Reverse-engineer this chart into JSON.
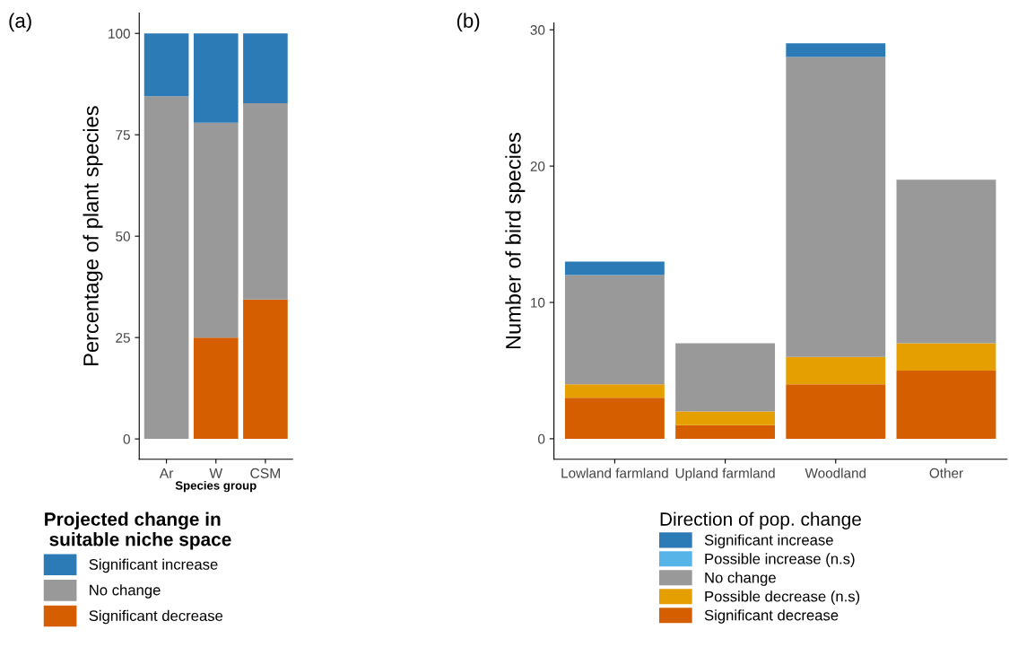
{
  "chart_data": [
    {
      "type": "bar",
      "title": "(a)",
      "xlabel": "Species group",
      "ylabel": "Percentage of plant species",
      "legend_title": "Projected change in\n suitable niche space",
      "stacked": true,
      "legend": "bottom",
      "grid": false,
      "categories": [
        "Ar",
        "W",
        "CSM"
      ],
      "ylim": [
        -5,
        105
      ],
      "yticks": [
        0,
        25,
        50,
        75,
        100
      ],
      "series": [
        {
          "name": "Significant decrease",
          "color": "#d55e00",
          "values": [
            0,
            25,
            34.4
          ]
        },
        {
          "name": "No change",
          "color": "#999999",
          "values": [
            84.5,
            53,
            48.4
          ]
        },
        {
          "name": "Significant increase",
          "color": "#2c7bb6",
          "values": [
            15.5,
            22,
            17.2
          ]
        }
      ]
    },
    {
      "type": "bar",
      "title": "(b)",
      "ylabel": "Number of bird species",
      "legend_title": "Direction of pop. change",
      "stacked": true,
      "legend": "bottom",
      "grid": false,
      "categories": [
        "Lowland farmland",
        "Upland farmland",
        "Woodland",
        "Other"
      ],
      "ylim": [
        -1.5,
        30.5
      ],
      "yticks": [
        0,
        10,
        20,
        30
      ],
      "series": [
        {
          "name": "Significant decrease",
          "color": "#d55e00",
          "values": [
            3,
            1,
            4,
            5
          ]
        },
        {
          "name": "Possible decrease (n.s)",
          "color": "#e69f00",
          "values": [
            1,
            1,
            2,
            2
          ]
        },
        {
          "name": "No change",
          "color": "#999999",
          "values": [
            8,
            5,
            22,
            12
          ]
        },
        {
          "name": "Possible increase (n.s)",
          "color": "#56b4e9",
          "values": [
            0,
            0,
            0,
            0
          ]
        },
        {
          "name": "Significant increase",
          "color": "#2c7bb6",
          "values": [
            1,
            0,
            1,
            0
          ]
        }
      ]
    }
  ]
}
